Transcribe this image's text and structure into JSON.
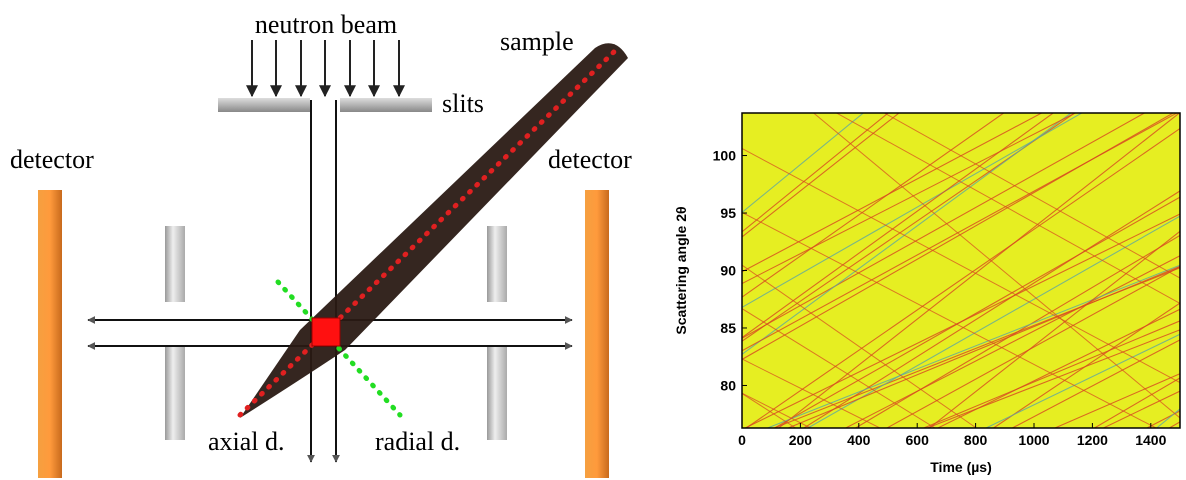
{
  "diagram": {
    "labels": {
      "beam": "neutron beam",
      "sample": "sample",
      "slits": "slits",
      "detector_left": "detector",
      "detector_right": "detector",
      "axial": "axial d.",
      "radial": "radial d."
    }
  },
  "chart_data": {
    "type": "image",
    "xlabel": "Time (µs)",
    "ylabel": "Scattering angle 2θ",
    "xlim": [
      0,
      1500
    ],
    "xticks": [
      0,
      200,
      400,
      600,
      800,
      1000,
      1200,
      1400
    ],
    "ylim": [
      76.3,
      103.7
    ],
    "yticks": [
      80,
      85,
      90,
      95,
      100
    ]
  }
}
